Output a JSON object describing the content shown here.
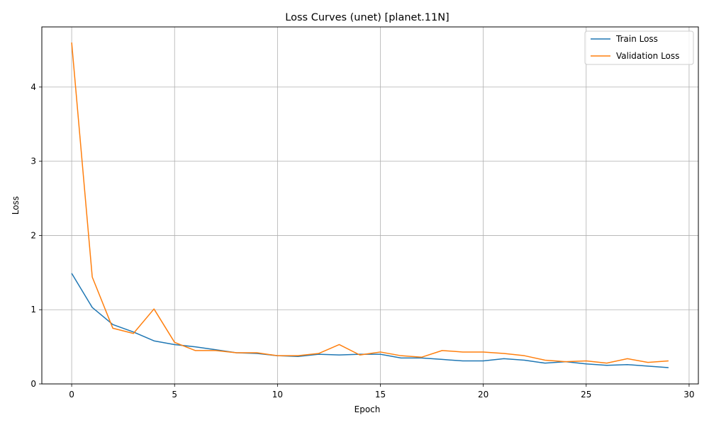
{
  "chart_data": {
    "type": "line",
    "title": "Loss Curves (unet) [planet.11N]",
    "xlabel": "Epoch",
    "ylabel": "Loss",
    "xlim": [
      -1.45,
      30.45
    ],
    "ylim": [
      0,
      4.81
    ],
    "xticks": [
      0,
      5,
      10,
      15,
      20,
      25,
      30
    ],
    "yticks": [
      0,
      1,
      2,
      3,
      4
    ],
    "grid": true,
    "legend_position": "top-right",
    "x": [
      0,
      1,
      2,
      3,
      4,
      5,
      6,
      7,
      8,
      9,
      10,
      11,
      12,
      13,
      14,
      15,
      16,
      17,
      18,
      19,
      20,
      21,
      22,
      23,
      24,
      25,
      26,
      27,
      28,
      29
    ],
    "series": [
      {
        "name": "Train Loss",
        "color": "#1f77b4",
        "values": [
          1.49,
          1.03,
          0.8,
          0.7,
          0.58,
          0.53,
          0.5,
          0.46,
          0.42,
          0.41,
          0.38,
          0.37,
          0.4,
          0.39,
          0.4,
          0.4,
          0.35,
          0.35,
          0.33,
          0.31,
          0.31,
          0.34,
          0.32,
          0.28,
          0.3,
          0.27,
          0.25,
          0.26,
          0.24,
          0.22
        ]
      },
      {
        "name": "Validation Loss",
        "color": "#ff7f0e",
        "values": [
          4.6,
          1.44,
          0.75,
          0.68,
          1.01,
          0.56,
          0.45,
          0.45,
          0.42,
          0.42,
          0.38,
          0.38,
          0.41,
          0.53,
          0.39,
          0.43,
          0.38,
          0.36,
          0.45,
          0.43,
          0.43,
          0.41,
          0.38,
          0.32,
          0.3,
          0.31,
          0.28,
          0.34,
          0.29,
          0.31
        ]
      }
    ]
  }
}
